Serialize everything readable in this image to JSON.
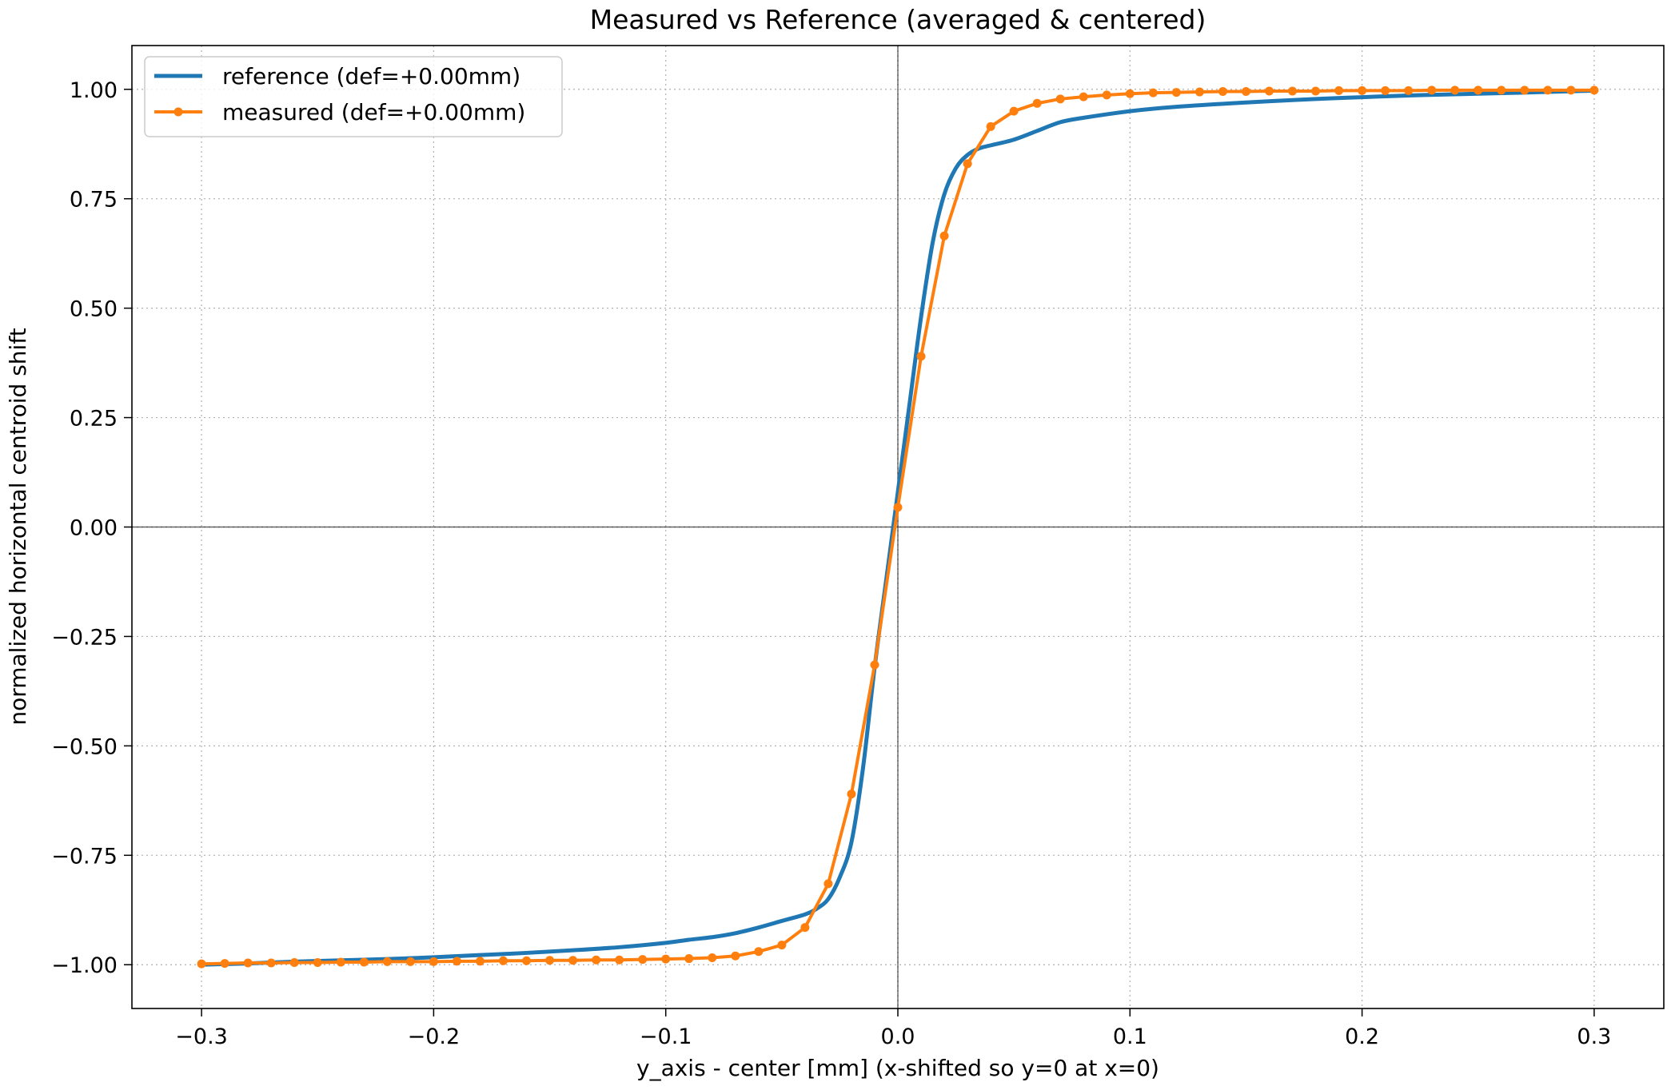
{
  "chart_data": {
    "type": "line",
    "title": "Measured vs Reference (averaged & centered)",
    "xlabel": "y_axis - center [mm] (x-shifted so y=0 at x=0)",
    "ylabel": "normalized horizontal centroid shift",
    "xlim": [
      -0.33,
      0.33
    ],
    "ylim": [
      -1.1,
      1.1
    ],
    "xticks": [
      -0.3,
      -0.2,
      -0.1,
      0.0,
      0.1,
      0.2,
      0.3
    ],
    "xtick_labels": [
      "−0.3",
      "−0.2",
      "−0.1",
      "0.0",
      "0.1",
      "0.2",
      "0.3"
    ],
    "yticks": [
      -1.0,
      -0.75,
      -0.5,
      -0.25,
      0.0,
      0.25,
      0.5,
      0.75,
      1.0
    ],
    "ytick_labels": [
      "−1.00",
      "−0.75",
      "−0.50",
      "−0.25",
      "0.00",
      "0.25",
      "0.50",
      "0.75",
      "1.00"
    ],
    "grid": true,
    "legend_position": "top-left",
    "series": [
      {
        "name": "reference (def=+0.00mm)",
        "color": "#1f77b4",
        "marker": "none",
        "x": [
          -0.3,
          -0.28,
          -0.26,
          -0.24,
          -0.22,
          -0.2,
          -0.18,
          -0.16,
          -0.14,
          -0.12,
          -0.1,
          -0.09,
          -0.08,
          -0.07,
          -0.06,
          -0.05,
          -0.04,
          -0.035,
          -0.03,
          -0.025,
          -0.02,
          -0.015,
          -0.01,
          -0.005,
          0.0,
          0.005,
          0.01,
          0.015,
          0.02,
          0.025,
          0.03,
          0.035,
          0.04,
          0.05,
          0.06,
          0.07,
          0.08,
          0.1,
          0.12,
          0.15,
          0.18,
          0.2,
          0.22,
          0.25,
          0.28,
          0.3
        ],
        "y": [
          -1.0,
          -0.997,
          -0.993,
          -0.99,
          -0.987,
          -0.983,
          -0.978,
          -0.973,
          -0.967,
          -0.96,
          -0.95,
          -0.943,
          -0.937,
          -0.928,
          -0.915,
          -0.9,
          -0.885,
          -0.872,
          -0.85,
          -0.8,
          -0.72,
          -0.55,
          -0.32,
          -0.12,
          0.08,
          0.28,
          0.48,
          0.65,
          0.76,
          0.82,
          0.85,
          0.865,
          0.872,
          0.885,
          0.905,
          0.925,
          0.935,
          0.95,
          0.96,
          0.97,
          0.978,
          0.982,
          0.986,
          0.99,
          0.994,
          0.997
        ]
      },
      {
        "name": "measured (def=+0.00mm)",
        "color": "#ff7f0e",
        "marker": "dot",
        "x": [
          -0.3,
          -0.29,
          -0.28,
          -0.27,
          -0.26,
          -0.25,
          -0.24,
          -0.23,
          -0.22,
          -0.21,
          -0.2,
          -0.19,
          -0.18,
          -0.17,
          -0.16,
          -0.15,
          -0.14,
          -0.13,
          -0.12,
          -0.11,
          -0.1,
          -0.09,
          -0.08,
          -0.07,
          -0.06,
          -0.05,
          -0.04,
          -0.03,
          -0.02,
          -0.01,
          0.0,
          0.01,
          0.02,
          0.03,
          0.04,
          0.05,
          0.06,
          0.07,
          0.08,
          0.09,
          0.1,
          0.11,
          0.12,
          0.13,
          0.14,
          0.15,
          0.16,
          0.17,
          0.18,
          0.19,
          0.2,
          0.21,
          0.22,
          0.23,
          0.24,
          0.25,
          0.26,
          0.27,
          0.28,
          0.29,
          0.3
        ],
        "y": [
          -0.998,
          -0.997,
          -0.996,
          -0.996,
          -0.995,
          -0.995,
          -0.994,
          -0.994,
          -0.993,
          -0.993,
          -0.993,
          -0.992,
          -0.992,
          -0.991,
          -0.991,
          -0.99,
          -0.99,
          -0.989,
          -0.989,
          -0.988,
          -0.987,
          -0.986,
          -0.984,
          -0.98,
          -0.97,
          -0.955,
          -0.915,
          -0.815,
          -0.61,
          -0.315,
          0.045,
          0.39,
          0.665,
          0.83,
          0.915,
          0.95,
          0.968,
          0.978,
          0.983,
          0.987,
          0.99,
          0.992,
          0.993,
          0.994,
          0.995,
          0.995,
          0.996,
          0.996,
          0.996,
          0.997,
          0.997,
          0.997,
          0.997,
          0.998,
          0.998,
          0.998,
          0.998,
          0.998,
          0.998,
          0.998,
          0.998
        ]
      }
    ]
  }
}
